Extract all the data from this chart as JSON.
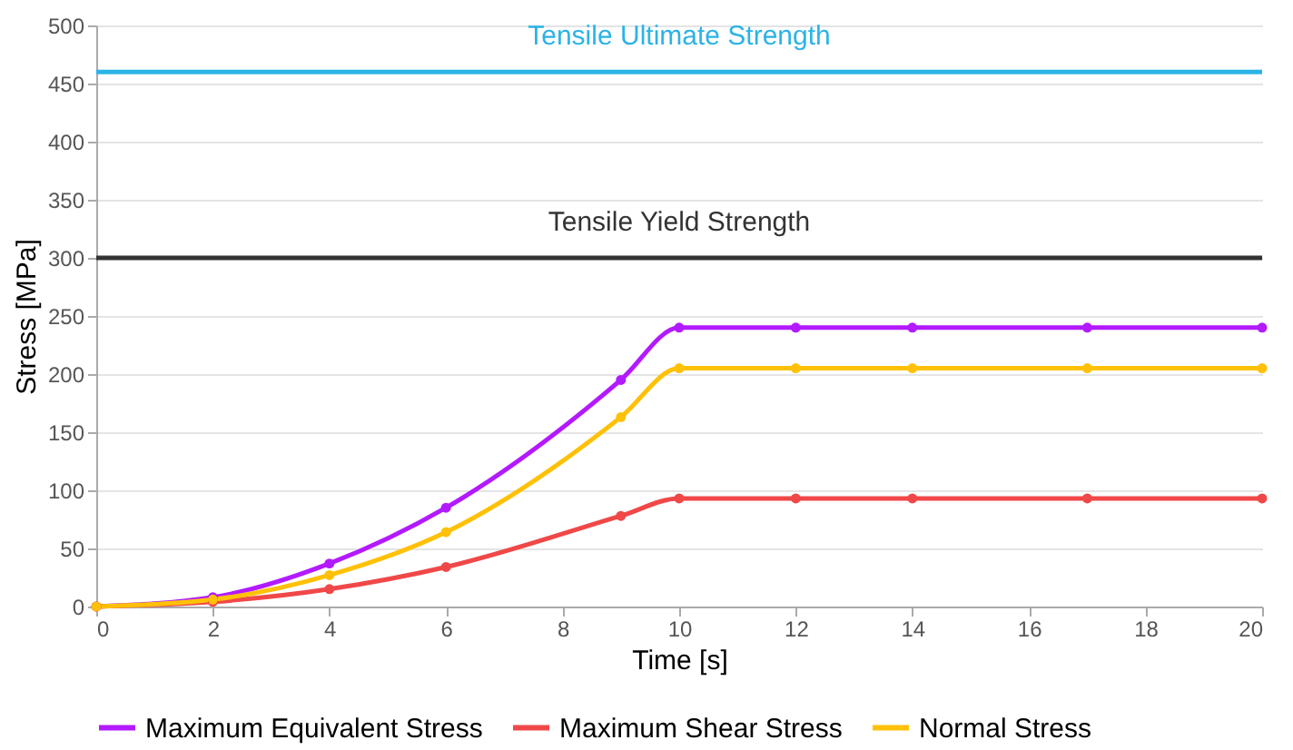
{
  "chart_data": {
    "type": "line",
    "xlabel": "Time [s]",
    "ylabel": "Stress  [MPa]",
    "x": [
      0,
      2,
      4,
      6,
      9,
      10,
      12,
      14,
      17,
      20
    ],
    "series": [
      {
        "name": "Maximum Equivalent Stress",
        "color": "#b31aff",
        "values": [
          0,
          8,
          37,
          85,
          195,
          240,
          240,
          240,
          240,
          240
        ]
      },
      {
        "name": "Maximum Shear Stress",
        "color": "#f04848",
        "values": [
          0,
          4,
          15,
          34,
          78,
          93,
          93,
          93,
          93,
          93
        ]
      },
      {
        "name": "Normal Stress",
        "color": "#ffc107",
        "values": [
          0,
          6,
          27,
          64,
          163,
          205,
          205,
          205,
          205,
          205
        ]
      }
    ],
    "ref_lines": [
      {
        "axis": "y",
        "value": 460,
        "label": "Tensile Ultimate Strength",
        "color": "#2bb3e6"
      },
      {
        "axis": "y",
        "value": 300,
        "label": "Tensile Yield Strength",
        "color": "#333333"
      }
    ],
    "xlim": [
      0,
      20
    ],
    "xticks": [
      0,
      2,
      4,
      6,
      8,
      10,
      12,
      14,
      16,
      18,
      20
    ],
    "ylim": [
      0,
      500
    ],
    "yticks": [
      0,
      50,
      100,
      150,
      200,
      250,
      300,
      350,
      400,
      450,
      500
    ],
    "grid": "y",
    "legend": "bottom",
    "marker": "circle",
    "line_style": "solid"
  }
}
